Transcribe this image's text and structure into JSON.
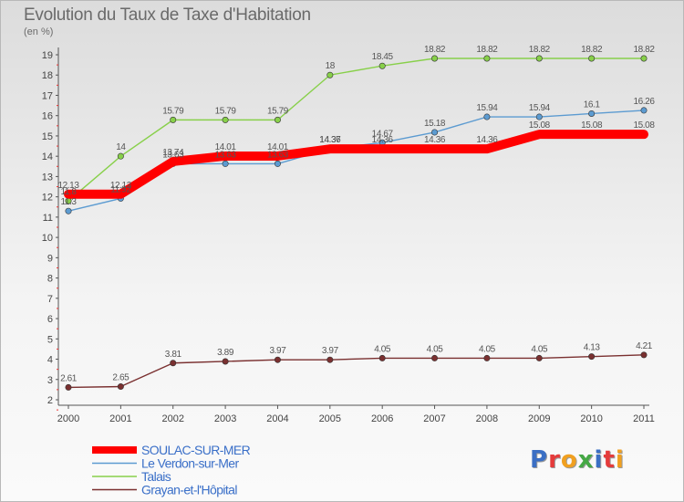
{
  "chart_data": {
    "type": "line",
    "title": "Evolution du Taux de Taxe d'Habitation",
    "subtitle": "(en %)",
    "x": [
      "2000",
      "2001",
      "2002",
      "2003",
      "2004",
      "2005",
      "2006",
      "2007",
      "2008",
      "2009",
      "2010",
      "2011"
    ],
    "ylim": [
      2,
      19
    ],
    "yticks": [
      2,
      3,
      4,
      5,
      6,
      7,
      8,
      9,
      10,
      11,
      12,
      13,
      14,
      15,
      16,
      17,
      18,
      19
    ],
    "grid": false,
    "legend_position": "bottom-left",
    "series": [
      {
        "name": "SOULAC-SUR-MER",
        "color": "#ff0000",
        "values": [
          12.13,
          12.13,
          13.74,
          14.01,
          14.01,
          14.36,
          14.36,
          14.36,
          14.36,
          15.08,
          15.08,
          15.08
        ],
        "labels": [
          "12.13",
          "12.13",
          "13.74",
          "14.01",
          "14.01",
          "14.36",
          "14.36",
          "14.36",
          "14.36",
          "15.08",
          "15.08",
          "15.08"
        ]
      },
      {
        "name": "Le Verdon-sur-Mer",
        "color": "#5c9bd1",
        "values": [
          11.3,
          11.92,
          13.63,
          13.63,
          13.63,
          14.37,
          14.67,
          15.18,
          15.94,
          15.94,
          16.1,
          16.26
        ],
        "labels": [
          "11.3",
          "11.92",
          "13.63",
          "13.63",
          "13.63",
          "14.37",
          "14.67",
          "15.18",
          "15.94",
          "15.94",
          "16.1",
          "16.26"
        ]
      },
      {
        "name": "Talais",
        "color": "#88d04a",
        "values": [
          11.8,
          14,
          15.79,
          15.79,
          15.79,
          18,
          18.45,
          18.82,
          18.82,
          18.82,
          18.82,
          18.82
        ],
        "labels": [
          "11.8",
          "14",
          "15.79",
          "15.79",
          "15.79",
          "18",
          "18.45",
          "18.82",
          "18.82",
          "18.82",
          "18.82",
          "18.82"
        ]
      },
      {
        "name": "Grayan-et-l'Hôpital",
        "color": "#7a3030",
        "values": [
          2.61,
          2.65,
          3.81,
          3.89,
          3.97,
          3.97,
          4.05,
          4.05,
          4.05,
          4.05,
          4.13,
          4.21
        ],
        "labels": [
          "2.61",
          "2.65",
          "3.81",
          "3.89",
          "3.97",
          "3.97",
          "4.05",
          "4.05",
          "4.05",
          "4.05",
          "4.13",
          "4.21"
        ]
      }
    ]
  },
  "logo": {
    "letters": [
      {
        "ch": "P",
        "color": "#3b6fc4"
      },
      {
        "ch": "r",
        "color": "#e53b3b"
      },
      {
        "ch": "o",
        "color": "#f0a020"
      },
      {
        "ch": "x",
        "color": "#45a845"
      },
      {
        "ch": "i",
        "color": "#3b6fc4"
      },
      {
        "ch": "t",
        "color": "#e53b3b"
      },
      {
        "ch": "i",
        "color": "#f0a020"
      }
    ]
  }
}
